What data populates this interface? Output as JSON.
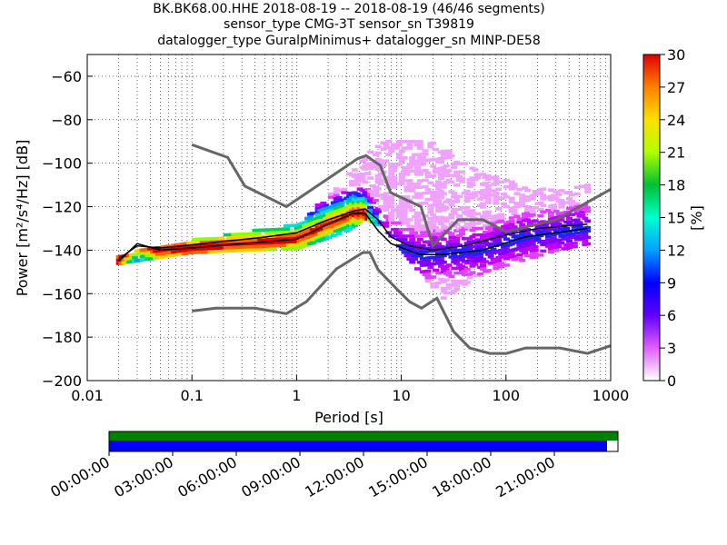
{
  "title_lines": [
    "BK.BK68.00.HHE   2018-08-19 -- 2018-08-19  (46/46 segments)",
    "sensor_type CMG-3T sensor_sn T39819",
    "datalogger_type GuralpMinimus+ datalogger_sn MINP-DE58"
  ],
  "chart_data": [
    {
      "type": "heatmap",
      "xlabel": "Period [s]",
      "ylabel": "Power [m²/s⁴/Hz] [dB]",
      "xscale": "log",
      "xlim": [
        0.01,
        1000
      ],
      "ylim": [
        -200,
        -50
      ],
      "x_ticks": [
        "0.01",
        "0.1",
        "1",
        "10",
        "100",
        "1000"
      ],
      "y_ticks": [
        "−60",
        "−80",
        "−100",
        "−120",
        "−140",
        "−160",
        "−180",
        "−200"
      ],
      "colorbar": {
        "label": "[%]",
        "range": [
          0,
          30
        ],
        "ticks": [
          "0",
          "3",
          "6",
          "9",
          "12",
          "15",
          "18",
          "21",
          "24",
          "27",
          "30"
        ]
      },
      "grid": true,
      "series": [
        {
          "role": "new-high-noise-model",
          "color": "#666666",
          "points": [
            [
              0.1,
              -91.5
            ],
            [
              0.22,
              -97.4
            ],
            [
              0.32,
              -110.5
            ],
            [
              0.8,
              -120
            ],
            [
              3.8,
              -98
            ],
            [
              4.6,
              -96.5
            ],
            [
              6.3,
              -101
            ],
            [
              7.9,
              -113.5
            ],
            [
              15.4,
              -120
            ],
            [
              20,
              -138
            ],
            [
              35,
              -126
            ],
            [
              60,
              -126
            ],
            [
              100,
              -131.5
            ],
            [
              300,
              -126
            ],
            [
              1000,
              -112
            ]
          ]
        },
        {
          "role": "new-low-noise-model",
          "color": "#666666",
          "points": [
            [
              0.1,
              -168
            ],
            [
              0.17,
              -166.7
            ],
            [
              0.4,
              -166.7
            ],
            [
              0.8,
              -169.2
            ],
            [
              1.24,
              -163.7
            ],
            [
              2.4,
              -148.6
            ],
            [
              4.3,
              -141.1
            ],
            [
              5,
              -141.1
            ],
            [
              6,
              -149
            ],
            [
              10,
              -160
            ],
            [
              12,
              -163.7
            ],
            [
              15.6,
              -166.7
            ],
            [
              21.9,
              -162.1
            ],
            [
              31.6,
              -177.5
            ],
            [
              45,
              -185
            ],
            [
              70,
              -187.5
            ],
            [
              101,
              -187.5
            ],
            [
              154,
              -185
            ],
            [
              328,
              -185
            ],
            [
              600,
              -187.5
            ],
            [
              10000,
              -168
            ]
          ]
        },
        {
          "role": "mean",
          "color": "#000000",
          "points": [
            [
              0.02,
              -144
            ],
            [
              0.03,
              -138
            ],
            [
              0.05,
              -139
            ],
            [
              0.08,
              -138
            ],
            [
              0.2,
              -136
            ],
            [
              0.5,
              -134
            ],
            [
              1,
              -132
            ],
            [
              2,
              -126
            ],
            [
              3.5,
              -122
            ],
            [
              4.5,
              -121
            ],
            [
              6,
              -126
            ],
            [
              8,
              -134
            ],
            [
              12,
              -138
            ],
            [
              20,
              -140
            ],
            [
              40,
              -138
            ],
            [
              100,
              -133
            ],
            [
              200,
              -130
            ],
            [
              600,
              -128
            ]
          ]
        },
        {
          "role": "mode",
          "color": "#000000",
          "points": [
            [
              0.02,
              -145
            ],
            [
              0.03,
              -137
            ],
            [
              0.05,
              -140
            ],
            [
              0.1,
              -139
            ],
            [
              0.3,
              -137
            ],
            [
              1,
              -135
            ],
            [
              2,
              -128
            ],
            [
              3.5,
              -123
            ],
            [
              4.5,
              -123
            ],
            [
              6,
              -131
            ],
            [
              8,
              -137
            ],
            [
              15,
              -142
            ],
            [
              25,
              -142
            ],
            [
              60,
              -140
            ],
            [
              150,
              -134
            ],
            [
              600,
              -130
            ]
          ]
        }
      ],
      "density_cloud": [
        {
          "x": [
            0.02,
            0.1,
            1,
            3,
            4.5,
            7,
            15,
            25,
            60,
            300,
            600
          ],
          "low": [
            -146,
            -141,
            -139,
            -131,
            -125,
            -130,
            -150,
            -162,
            -150,
            -140,
            -137
          ],
          "high": [
            -142,
            -135,
            -128,
            -106,
            -95,
            -89,
            -89,
            -92,
            -105,
            -112,
            -110
          ]
        }
      ]
    },
    {
      "type": "timeline",
      "x_ticks": [
        "00:00:00",
        "03:00:00",
        "06:00:00",
        "09:00:00",
        "12:00:00",
        "15:00:00",
        "18:00:00",
        "21:00:00"
      ],
      "rows": [
        {
          "role": "data-availability",
          "color": "#008000",
          "coverage": 1.0
        },
        {
          "role": "psd-segments",
          "color": "#0000ff",
          "coverage": 0.978
        }
      ]
    }
  ]
}
